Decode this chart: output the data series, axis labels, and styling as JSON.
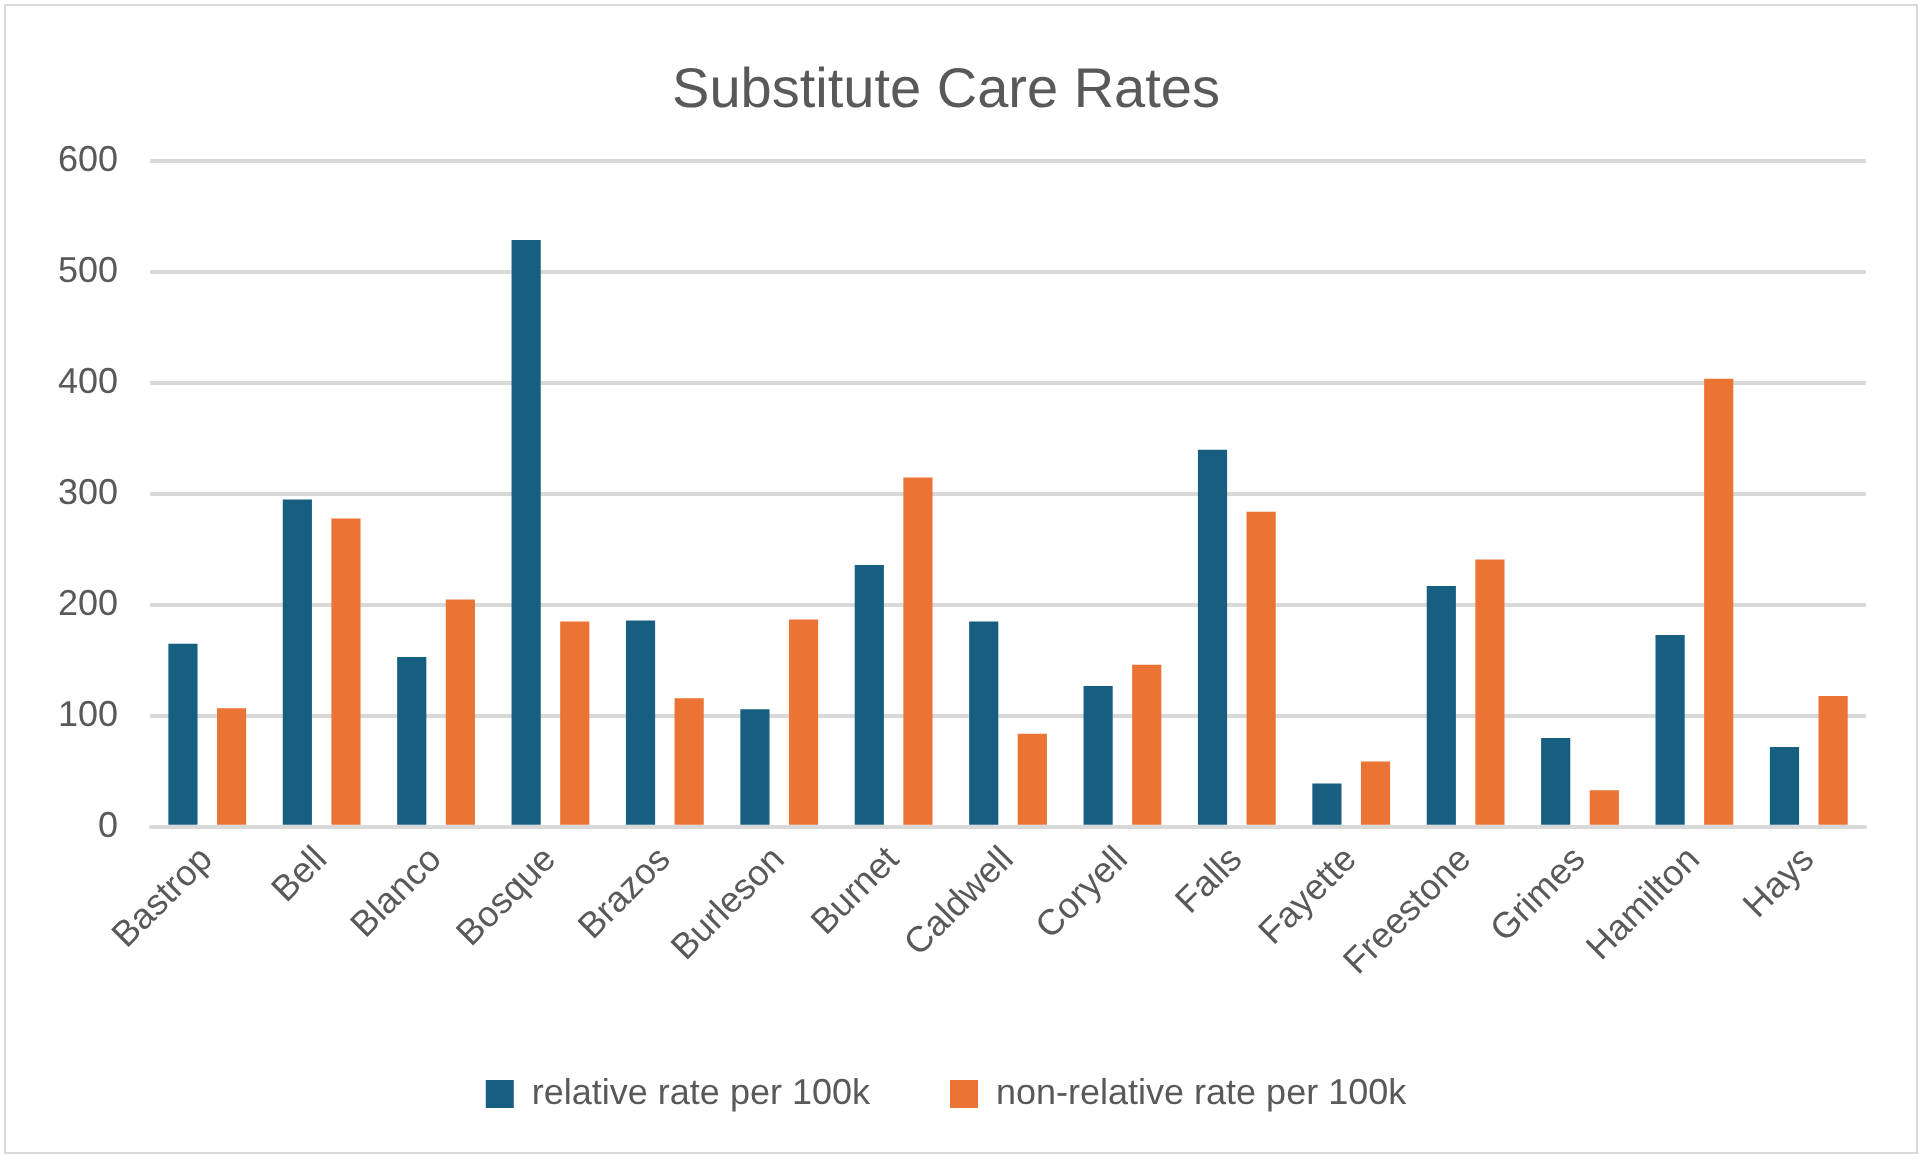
{
  "chart_data": {
    "type": "bar",
    "title": "Substitute Care Rates",
    "categories": [
      "Bastrop",
      "Bell",
      "Blanco",
      "Bosque",
      "Brazos",
      "Burleson",
      "Burnet",
      "Caldwell",
      "Coryell",
      "Falls",
      "Fayette",
      "Freestone",
      "Grimes",
      "Hamilton",
      "Hays"
    ],
    "series": [
      {
        "name": "relative rate per 100k",
        "color": "#175f80",
        "values": [
          165,
          295,
          153,
          529,
          186,
          106,
          236,
          185,
          127,
          340,
          39,
          217,
          80,
          173,
          72
        ]
      },
      {
        "name": "non-relative rate per 100k",
        "color": "#eb7333",
        "values": [
          107,
          278,
          205,
          185,
          116,
          187,
          315,
          84,
          146,
          284,
          59,
          241,
          33,
          404,
          118
        ]
      }
    ],
    "ylim": [
      0,
      600
    ],
    "yticks": [
      0,
      100,
      200,
      300,
      400,
      500,
      600
    ],
    "grid": "y",
    "legend": "bottom"
  }
}
